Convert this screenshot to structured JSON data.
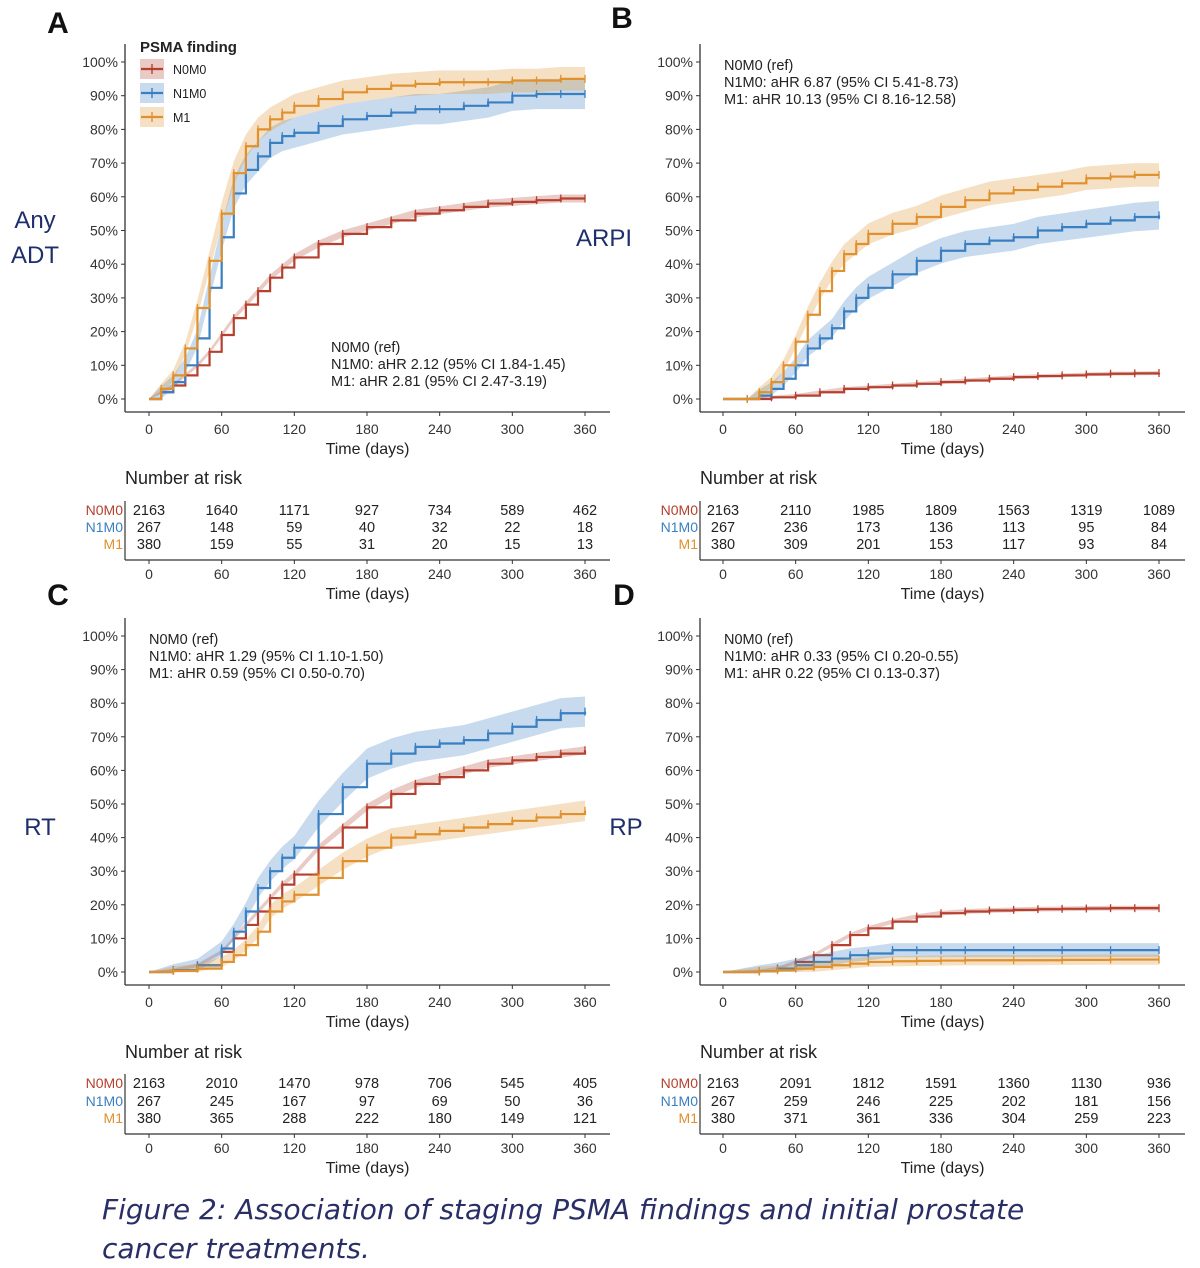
{
  "figure": {
    "caption": "Figure 2: Association of staging PSMA findings and initial prostate cancer treatments.",
    "legend_title": "PSMA finding",
    "series_names": [
      "N0M0",
      "N1M0",
      "M1"
    ],
    "colors": {
      "N0M0": "#b5402f",
      "N1M0": "#3a7fc1",
      "M1": "#e0902c"
    },
    "risk_title": "Number at risk"
  },
  "chart_data": [
    {
      "panel": "A",
      "type": "line",
      "ylabel": "Any ADT",
      "xlabel": "Time (days)",
      "xlim": [
        0,
        360
      ],
      "ylim": [
        0,
        1
      ],
      "xticks": [
        "0",
        "60",
        "120",
        "180",
        "240",
        "300",
        "360"
      ],
      "yticks": [
        "0%",
        "10%",
        "20%",
        "30%",
        "40%",
        "50%",
        "60%",
        "70%",
        "80%",
        "90%",
        "100%"
      ],
      "annotations": [
        "N0M0 (ref)",
        "N1M0: aHR 2.12 (95% CI 1.84-1.45)",
        "M1: aHR 2.81 (95% CI 2.47-3.19)"
      ],
      "series": [
        {
          "name": "N0M0",
          "x": [
            0,
            10,
            20,
            30,
            40,
            50,
            60,
            70,
            80,
            90,
            100,
            110,
            120,
            140,
            160,
            180,
            200,
            220,
            240,
            260,
            280,
            300,
            320,
            340,
            360
          ],
          "y": [
            0,
            0.02,
            0.04,
            0.07,
            0.1,
            0.14,
            0.19,
            0.24,
            0.28,
            0.32,
            0.36,
            0.39,
            0.42,
            0.46,
            0.49,
            0.51,
            0.53,
            0.55,
            0.56,
            0.57,
            0.58,
            0.585,
            0.59,
            0.595,
            0.595
          ]
        },
        {
          "name": "N1M0",
          "x": [
            0,
            10,
            20,
            30,
            40,
            50,
            60,
            70,
            80,
            90,
            100,
            110,
            120,
            140,
            160,
            180,
            200,
            220,
            240,
            260,
            280,
            300,
            320,
            340,
            360
          ],
          "y": [
            0,
            0.02,
            0.05,
            0.1,
            0.18,
            0.33,
            0.48,
            0.61,
            0.68,
            0.72,
            0.76,
            0.78,
            0.79,
            0.81,
            0.83,
            0.84,
            0.85,
            0.86,
            0.86,
            0.87,
            0.88,
            0.9,
            0.905,
            0.905,
            0.905
          ]
        },
        {
          "name": "M1",
          "x": [
            0,
            10,
            20,
            30,
            40,
            50,
            60,
            70,
            80,
            90,
            100,
            110,
            120,
            140,
            160,
            180,
            200,
            220,
            240,
            260,
            280,
            300,
            320,
            340,
            360
          ],
          "y": [
            0,
            0.03,
            0.07,
            0.15,
            0.27,
            0.41,
            0.55,
            0.67,
            0.75,
            0.8,
            0.83,
            0.85,
            0.87,
            0.89,
            0.91,
            0.92,
            0.93,
            0.935,
            0.94,
            0.94,
            0.94,
            0.945,
            0.945,
            0.95,
            0.95
          ]
        }
      ],
      "risk_table": {
        "N0M0": [
          "2163",
          "1640",
          "1171",
          "927",
          "734",
          "589",
          "462"
        ],
        "N1M0": [
          "267",
          "148",
          "59",
          "40",
          "32",
          "22",
          "18"
        ],
        "M1": [
          "380",
          "159",
          "55",
          "31",
          "20",
          "15",
          "13"
        ]
      }
    },
    {
      "panel": "B",
      "type": "line",
      "ylabel": "ARPI",
      "xlabel": "Time (days)",
      "xlim": [
        0,
        360
      ],
      "ylim": [
        0,
        1
      ],
      "xticks": [
        "0",
        "60",
        "120",
        "180",
        "240",
        "300",
        "360"
      ],
      "yticks": [
        "0%",
        "10%",
        "20%",
        "30%",
        "40%",
        "50%",
        "60%",
        "70%",
        "80%",
        "90%",
        "100%"
      ],
      "annotations": [
        "N0M0 (ref)",
        "N1M0: aHR 6.87 (95% CI 5.41-8.73)",
        "M1: aHR 10.13 (95% CI 8.16-12.58)"
      ],
      "series": [
        {
          "name": "N0M0",
          "x": [
            0,
            20,
            40,
            60,
            80,
            100,
            120,
            140,
            160,
            180,
            200,
            220,
            240,
            260,
            280,
            300,
            320,
            340,
            360
          ],
          "y": [
            0,
            0,
            0.005,
            0.01,
            0.02,
            0.03,
            0.035,
            0.04,
            0.045,
            0.05,
            0.055,
            0.06,
            0.065,
            0.068,
            0.07,
            0.073,
            0.075,
            0.076,
            0.077
          ]
        },
        {
          "name": "N1M0",
          "x": [
            0,
            20,
            30,
            40,
            50,
            60,
            70,
            80,
            90,
            100,
            110,
            120,
            140,
            160,
            180,
            200,
            220,
            240,
            260,
            280,
            300,
            320,
            340,
            360
          ],
          "y": [
            0,
            0,
            0.01,
            0.03,
            0.06,
            0.1,
            0.15,
            0.18,
            0.21,
            0.26,
            0.3,
            0.33,
            0.37,
            0.41,
            0.44,
            0.46,
            0.47,
            0.48,
            0.5,
            0.51,
            0.52,
            0.53,
            0.54,
            0.545
          ]
        },
        {
          "name": "M1",
          "x": [
            0,
            20,
            30,
            40,
            50,
            60,
            70,
            80,
            90,
            100,
            110,
            120,
            140,
            160,
            180,
            200,
            220,
            240,
            260,
            280,
            300,
            320,
            340,
            360
          ],
          "y": [
            0,
            0,
            0.02,
            0.05,
            0.1,
            0.17,
            0.25,
            0.32,
            0.38,
            0.43,
            0.46,
            0.49,
            0.52,
            0.54,
            0.57,
            0.59,
            0.61,
            0.62,
            0.63,
            0.64,
            0.655,
            0.66,
            0.665,
            0.665
          ]
        }
      ],
      "risk_table": {
        "N0M0": [
          "2163",
          "2110",
          "1985",
          "1809",
          "1563",
          "1319",
          "1089"
        ],
        "N1M0": [
          "267",
          "236",
          "173",
          "136",
          "113",
          "95",
          "84"
        ],
        "M1": [
          "380",
          "309",
          "201",
          "153",
          "117",
          "93",
          "84"
        ]
      }
    },
    {
      "panel": "C",
      "type": "line",
      "ylabel": "RT",
      "xlabel": "Time (days)",
      "xlim": [
        0,
        360
      ],
      "ylim": [
        0,
        1
      ],
      "xticks": [
        "0",
        "60",
        "120",
        "180",
        "240",
        "300",
        "360"
      ],
      "yticks": [
        "0%",
        "10%",
        "20%",
        "30%",
        "40%",
        "50%",
        "60%",
        "70%",
        "80%",
        "90%",
        "100%"
      ],
      "annotations": [
        "N0M0 (ref)",
        "N1M0: aHR 1.29 (95% CI 1.10-1.50)",
        "M1: aHR 0.59 (95% CI 0.50-0.70)"
      ],
      "series": [
        {
          "name": "N0M0",
          "x": [
            0,
            20,
            40,
            60,
            70,
            80,
            90,
            100,
            110,
            120,
            140,
            160,
            180,
            200,
            220,
            240,
            260,
            280,
            300,
            320,
            340,
            360
          ],
          "y": [
            0,
            0.005,
            0.02,
            0.06,
            0.1,
            0.14,
            0.18,
            0.22,
            0.26,
            0.29,
            0.37,
            0.43,
            0.49,
            0.53,
            0.56,
            0.58,
            0.6,
            0.62,
            0.63,
            0.64,
            0.65,
            0.66
          ]
        },
        {
          "name": "N1M0",
          "x": [
            0,
            20,
            40,
            60,
            70,
            80,
            90,
            100,
            110,
            120,
            140,
            160,
            180,
            200,
            220,
            240,
            260,
            280,
            300,
            320,
            340,
            360
          ],
          "y": [
            0,
            0.005,
            0.02,
            0.07,
            0.12,
            0.18,
            0.25,
            0.3,
            0.34,
            0.37,
            0.47,
            0.55,
            0.62,
            0.65,
            0.67,
            0.68,
            0.69,
            0.71,
            0.73,
            0.75,
            0.77,
            0.775
          ]
        },
        {
          "name": "M1",
          "x": [
            0,
            20,
            40,
            60,
            70,
            80,
            90,
            100,
            110,
            120,
            140,
            160,
            180,
            200,
            220,
            240,
            260,
            280,
            300,
            320,
            340,
            360
          ],
          "y": [
            0,
            0.003,
            0.01,
            0.03,
            0.05,
            0.08,
            0.12,
            0.18,
            0.21,
            0.23,
            0.28,
            0.33,
            0.37,
            0.4,
            0.41,
            0.42,
            0.43,
            0.44,
            0.45,
            0.46,
            0.47,
            0.48
          ]
        }
      ],
      "risk_table": {
        "N0M0": [
          "2163",
          "2010",
          "1470",
          "978",
          "706",
          "545",
          "405"
        ],
        "N1M0": [
          "267",
          "245",
          "167",
          "97",
          "69",
          "50",
          "36"
        ],
        "M1": [
          "380",
          "365",
          "288",
          "222",
          "180",
          "149",
          "121"
        ]
      }
    },
    {
      "panel": "D",
      "type": "line",
      "ylabel": "RP",
      "xlabel": "Time (days)",
      "xlim": [
        0,
        360
      ],
      "ylim": [
        0,
        1
      ],
      "xticks": [
        "0",
        "60",
        "120",
        "180",
        "240",
        "300",
        "360"
      ],
      "yticks": [
        "0%",
        "10%",
        "20%",
        "30%",
        "40%",
        "50%",
        "60%",
        "70%",
        "80%",
        "90%",
        "100%"
      ],
      "annotations": [
        "N0M0 (ref)",
        "N1M0: aHR 0.33 (95% CI 0.20-0.55)",
        "M1: aHR 0.22 (95% CI 0.13-0.37)"
      ],
      "series": [
        {
          "name": "N0M0",
          "x": [
            0,
            30,
            45,
            60,
            75,
            90,
            105,
            120,
            140,
            160,
            180,
            200,
            220,
            240,
            260,
            280,
            300,
            320,
            340,
            360
          ],
          "y": [
            0,
            0.002,
            0.01,
            0.03,
            0.05,
            0.08,
            0.11,
            0.13,
            0.15,
            0.165,
            0.175,
            0.18,
            0.183,
            0.185,
            0.187,
            0.188,
            0.189,
            0.19,
            0.19,
            0.19
          ]
        },
        {
          "name": "N1M0",
          "x": [
            0,
            30,
            45,
            60,
            75,
            90,
            105,
            120,
            140,
            160,
            180,
            200,
            240,
            280,
            320,
            360
          ],
          "y": [
            0,
            0.002,
            0.01,
            0.02,
            0.03,
            0.04,
            0.05,
            0.055,
            0.065,
            0.065,
            0.065,
            0.065,
            0.065,
            0.065,
            0.065,
            0.065
          ]
        },
        {
          "name": "M1",
          "x": [
            0,
            30,
            45,
            60,
            75,
            90,
            105,
            120,
            140,
            160,
            180,
            200,
            240,
            280,
            320,
            360
          ],
          "y": [
            0,
            0.002,
            0.005,
            0.01,
            0.015,
            0.02,
            0.025,
            0.03,
            0.032,
            0.033,
            0.034,
            0.035,
            0.035,
            0.036,
            0.037,
            0.037
          ]
        }
      ],
      "risk_table": {
        "N0M0": [
          "2163",
          "2091",
          "1812",
          "1591",
          "1360",
          "1130",
          "936"
        ],
        "N1M0": [
          "267",
          "259",
          "246",
          "225",
          "202",
          "181",
          "156"
        ],
        "M1": [
          "380",
          "371",
          "361",
          "336",
          "304",
          "259",
          "223"
        ]
      }
    }
  ]
}
